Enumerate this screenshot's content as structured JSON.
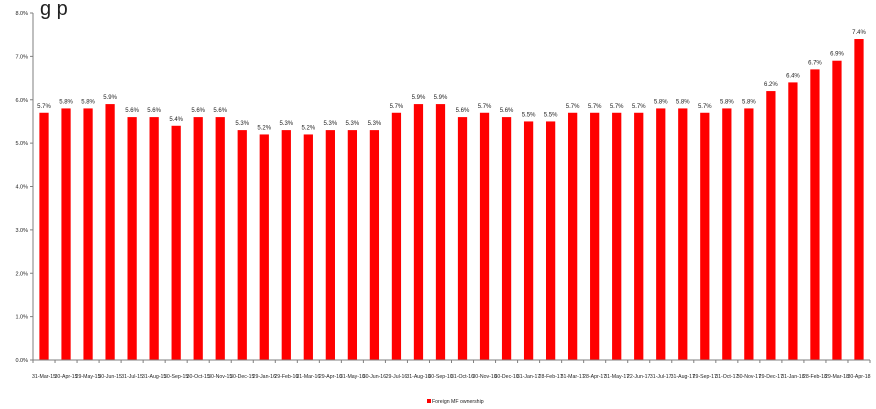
{
  "title_fragment": "g                                    p",
  "chart_data": {
    "type": "bar",
    "categories": [
      "31-Mar-15",
      "30-Apr-15",
      "29-May-15",
      "30-Jun-15",
      "31-Jul-15",
      "31-Aug-15",
      "30-Sep-15",
      "30-Oct-15",
      "30-Nov-15",
      "30-Dec-15",
      "29-Jan-16",
      "29-Feb-16",
      "31-Mar-16",
      "29-Apr-16",
      "31-May-16",
      "30-Jun-16",
      "29-Jul-16",
      "31-Aug-16",
      "30-Sep-16",
      "31-Oct-16",
      "30-Nov-16",
      "30-Dec-16",
      "31-Jan-17",
      "28-Feb-17",
      "31-Mar-17",
      "28-Apr-17",
      "31-May-17",
      "22-Jun-17",
      "31-Jul-17",
      "31-Aug-17",
      "29-Sep-17",
      "31-Oct-17",
      "30-Nov-17",
      "29-Dec-17",
      "31-Jan-18",
      "28-Feb-18",
      "29-Mar-18",
      "30-Apr-18"
    ],
    "series": [
      {
        "name": "Foreign MF ownership",
        "values": [
          5.7,
          5.8,
          5.8,
          5.9,
          5.6,
          5.6,
          5.4,
          5.6,
          5.6,
          5.3,
          5.2,
          5.3,
          5.2,
          5.3,
          5.3,
          5.3,
          5.7,
          5.9,
          5.9,
          5.6,
          5.7,
          5.6,
          5.5,
          5.5,
          5.7,
          5.7,
          5.7,
          5.7,
          5.8,
          5.8,
          5.7,
          5.8,
          5.8,
          6.2,
          6.4,
          6.7,
          6.9,
          7.4
        ],
        "data_labels": [
          "5.7%",
          "5.8%",
          "5.8%",
          "5.9%",
          "5.6%",
          "5.6%",
          "5.4%",
          "5.6%",
          "5.6%",
          "5.3%",
          "5.2%",
          "5.3%",
          "5.2%",
          "5.3%",
          "5.3%",
          "5.3%",
          "5.7%",
          "5.9%",
          "5.9%",
          "5.6%",
          "5.7%",
          "5.6%",
          "5.5%",
          "5.5%",
          "5.7%",
          "5.7%",
          "5.7%",
          "5.7%",
          "5.8%",
          "5.8%",
          "5.7%",
          "5.8%",
          "5.8%",
          "6.2%",
          "6.4%",
          "6.7%",
          "6.9%",
          "7.4%"
        ]
      }
    ],
    "y_ticks": [
      0,
      1,
      2,
      3,
      4,
      5,
      6,
      7,
      8
    ],
    "y_tick_labels": [
      "0.0%",
      "1.0%",
      "2.0%",
      "3.0%",
      "4.0%",
      "5.0%",
      "6.0%",
      "7.0%",
      "8.0%"
    ],
    "ylim": [
      0,
      8
    ],
    "grid": false,
    "legend_position": "bottom-center",
    "bar_color": "#ff0000",
    "axis_color": "#7f7f7f"
  }
}
